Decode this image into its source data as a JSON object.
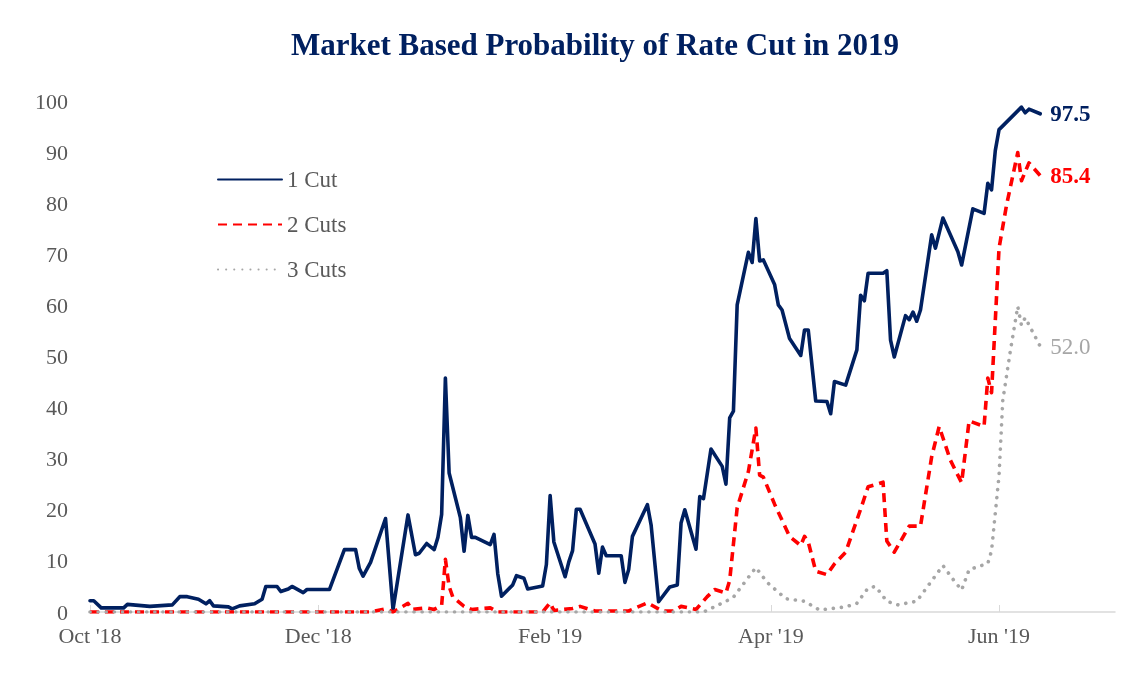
{
  "chart_data": {
    "type": "line",
    "title": "Market Based Probability of Rate Cut in 2019",
    "xlim": [
      "2018-10-01",
      "2019-07-02"
    ],
    "xticks": [
      {
        "value": "2018-10-01",
        "label": "Oct '18"
      },
      {
        "value": "2018-12-01",
        "label": "Dec '18"
      },
      {
        "value": "2019-02-01",
        "label": "Feb '19"
      },
      {
        "value": "2019-04-01",
        "label": "Apr '19"
      },
      {
        "value": "2019-06-01",
        "label": "Jun '19"
      }
    ],
    "ylim": [
      0,
      100
    ],
    "yticks": [
      0,
      10,
      20,
      30,
      40,
      50,
      60,
      70,
      80,
      90,
      100
    ],
    "grid": false,
    "legend": "top left",
    "marker": "none",
    "series": [
      {
        "name": "1 Cut",
        "color": "#002060",
        "line_style": "solid",
        "x": [
          "2018-10-01",
          "2018-10-02",
          "2018-10-04",
          "2018-10-10",
          "2018-10-11",
          "2018-10-17",
          "2018-10-19",
          "2018-10-23",
          "2018-10-25",
          "2018-10-27",
          "2018-10-30",
          "2018-11-01",
          "2018-11-02",
          "2018-11-03",
          "2018-11-07",
          "2018-11-08",
          "2018-11-10",
          "2018-11-14",
          "2018-11-16",
          "2018-11-17",
          "2018-11-20",
          "2018-11-21",
          "2018-11-23",
          "2018-11-24",
          "2018-11-27",
          "2018-11-28",
          "2018-12-04",
          "2018-12-06",
          "2018-12-08",
          "2018-12-11",
          "2018-12-12",
          "2018-12-13",
          "2018-12-15",
          "2018-12-19",
          "2018-12-21",
          "2018-12-25",
          "2018-12-27",
          "2018-12-28",
          "2018-12-30",
          "2019-01-01",
          "2019-01-02",
          "2019-01-03",
          "2019-01-04",
          "2019-01-05",
          "2019-01-08",
          "2019-01-09",
          "2019-01-10",
          "2019-01-11",
          "2019-01-12",
          "2019-01-16",
          "2019-01-17",
          "2019-01-18",
          "2019-01-19",
          "2019-01-22",
          "2019-01-23",
          "2019-01-25",
          "2019-01-26",
          "2019-01-30",
          "2019-01-31",
          "2019-02-01",
          "2019-02-02",
          "2019-02-05",
          "2019-02-06",
          "2019-02-07",
          "2019-02-08",
          "2019-02-09",
          "2019-02-13",
          "2019-02-14",
          "2019-02-15",
          "2019-02-16",
          "2019-02-20",
          "2019-02-21",
          "2019-02-22",
          "2019-02-23",
          "2019-02-27",
          "2019-02-28",
          "2019-03-02",
          "2019-03-05",
          "2019-03-07",
          "2019-03-08",
          "2019-03-09",
          "2019-03-12",
          "2019-03-13",
          "2019-03-14",
          "2019-03-16",
          "2019-03-19",
          "2019-03-20",
          "2019-03-21",
          "2019-03-22",
          "2019-03-23",
          "2019-03-26",
          "2019-03-27",
          "2019-03-28",
          "2019-03-29",
          "2019-03-30",
          "2019-04-02",
          "2019-04-03",
          "2019-04-04",
          "2019-04-06",
          "2019-04-09",
          "2019-04-10",
          "2019-04-11",
          "2019-04-13",
          "2019-04-16",
          "2019-04-17",
          "2019-04-18",
          "2019-04-21",
          "2019-04-24",
          "2019-04-25",
          "2019-04-26",
          "2019-04-27",
          "2019-05-01",
          "2019-05-02",
          "2019-05-03",
          "2019-05-04",
          "2019-05-07",
          "2019-05-08",
          "2019-05-09",
          "2019-05-10",
          "2019-05-11",
          "2019-05-14",
          "2019-05-15",
          "2019-05-17",
          "2019-05-21",
          "2019-05-22",
          "2019-05-25",
          "2019-05-28",
          "2019-05-29",
          "2019-05-30",
          "2019-05-31",
          "2019-06-01",
          "2019-06-07",
          "2019-06-08",
          "2019-06-09",
          "2019-06-12"
        ],
        "values": [
          2.2,
          2.2,
          0.8,
          0.8,
          1.5,
          1.1,
          1.2,
          1.4,
          3.0,
          3.0,
          2.5,
          1.6,
          2.2,
          1.2,
          1.0,
          0.6,
          1.2,
          1.6,
          2.5,
          5.0,
          5.0,
          4.0,
          4.5,
          5.0,
          3.8,
          4.4,
          4.4,
          8.3,
          12.2,
          12.2,
          8.5,
          7.0,
          9.7,
          18.3,
          0.5,
          19.0,
          11.2,
          11.5,
          13.4,
          12.2,
          14.6,
          19.1,
          45.8,
          27.2,
          18.5,
          11.9,
          18.9,
          14.6,
          14.6,
          13.2,
          15.2,
          7.5,
          3.1,
          5.3,
          7.1,
          6.6,
          4.5,
          5.1,
          9.3,
          22.8,
          13.7,
          6.9,
          9.8,
          12.0,
          20.1,
          20.1,
          13.3,
          7.6,
          12.7,
          11.0,
          11.0,
          5.8,
          8.3,
          14.8,
          21.0,
          17.0,
          2.0,
          4.9,
          5.3,
          17.4,
          20.0,
          12.3,
          22.6,
          22.2,
          31.9,
          28.5,
          25.0,
          38.0,
          39.3,
          60.1,
          70.4,
          68.4,
          77.0,
          68.7,
          68.9,
          64.1,
          60.1,
          59.1,
          53.5,
          50.2,
          55.2,
          55.2,
          41.3,
          41.2,
          38.8,
          45.1,
          44.4,
          51.3,
          62.0,
          60.9,
          66.3,
          66.3,
          66.8,
          53.2,
          49.9,
          58.0,
          57.2,
          58.7,
          56.9,
          59.1,
          73.8,
          71.2,
          77.1,
          70.5,
          67.9,
          78.9,
          78.0,
          83.9,
          82.6,
          90.3,
          94.4,
          98.8,
          97.7,
          98.4,
          97.5
        ]
      },
      {
        "name": "2 Cuts",
        "color": "#ff0000",
        "line_style": "dashed",
        "x": [
          "2018-10-01",
          "2018-12-15",
          "2018-12-19",
          "2018-12-21",
          "2018-12-25",
          "2018-12-26",
          "2018-12-30",
          "2019-01-01",
          "2019-01-03",
          "2019-01-04",
          "2019-01-05",
          "2019-01-06",
          "2019-01-09",
          "2019-01-11",
          "2019-01-16",
          "2019-01-18",
          "2019-01-30",
          "2019-02-01",
          "2019-02-02",
          "2019-02-07",
          "2019-02-09",
          "2019-02-13",
          "2019-02-22",
          "2019-02-27",
          "2019-03-03",
          "2019-03-06",
          "2019-03-08",
          "2019-03-12",
          "2019-03-15",
          "2019-03-17",
          "2019-03-20",
          "2019-03-21",
          "2019-03-23",
          "2019-03-26",
          "2019-03-28",
          "2019-03-29",
          "2019-03-30",
          "2019-04-02",
          "2019-04-06",
          "2019-04-09",
          "2019-04-10",
          "2019-04-11",
          "2019-04-13",
          "2019-04-16",
          "2019-04-18",
          "2019-04-21",
          "2019-04-25",
          "2019-04-27",
          "2019-05-01",
          "2019-05-02",
          "2019-05-04",
          "2019-05-08",
          "2019-05-11",
          "2019-05-14",
          "2019-05-16",
          "2019-05-19",
          "2019-05-22",
          "2019-05-24",
          "2019-05-28",
          "2019-05-29",
          "2019-05-30",
          "2019-06-01",
          "2019-06-03",
          "2019-06-06",
          "2019-06-07",
          "2019-06-09",
          "2019-06-12"
        ],
        "values": [
          0,
          0,
          0.6,
          0,
          1.7,
          0.5,
          0.8,
          0.5,
          1.3,
          10.3,
          5.0,
          2.9,
          1.1,
          0.5,
          0.8,
          0,
          0,
          1.8,
          0.3,
          0.7,
          1.1,
          0.2,
          0.2,
          1.8,
          0.2,
          0.2,
          1.1,
          0.5,
          3.0,
          4.4,
          3.7,
          6.2,
          20.4,
          27.5,
          36.0,
          26.8,
          26.4,
          21.1,
          14.8,
          13.0,
          14.8,
          13.7,
          8.0,
          7.3,
          9.4,
          11.7,
          20.1,
          24.5,
          25.4,
          13.9,
          11.7,
          16.8,
          16.8,
          30.4,
          36.3,
          29.7,
          25.3,
          37.4,
          36.3,
          45.8,
          42.9,
          71.2,
          79.6,
          89.9,
          84.4,
          87.9,
          85.4
        ]
      },
      {
        "name": "3 Cuts",
        "color": "#a6a6a6",
        "line_style": "dotted",
        "x": [
          "2018-10-01",
          "2019-03-14",
          "2019-03-20",
          "2019-03-22",
          "2019-03-28",
          "2019-03-31",
          "2019-04-05",
          "2019-04-10",
          "2019-04-14",
          "2019-04-21",
          "2019-04-24",
          "2019-04-27",
          "2019-04-29",
          "2019-05-02",
          "2019-05-05",
          "2019-05-10",
          "2019-05-14",
          "2019-05-17",
          "2019-05-20",
          "2019-05-22",
          "2019-05-24",
          "2019-05-29",
          "2019-05-30",
          "2019-06-01",
          "2019-06-02",
          "2019-06-04",
          "2019-06-06",
          "2019-06-07",
          "2019-06-08",
          "2019-06-12"
        ],
        "values": [
          0,
          0,
          2.1,
          2.9,
          8.7,
          5.8,
          2.6,
          2.1,
          0.4,
          1.0,
          1.7,
          4.7,
          5.0,
          2.1,
          1.4,
          2.1,
          6.1,
          9.1,
          6.1,
          4.3,
          8.3,
          9.5,
          12.0,
          26.7,
          41.4,
          51.0,
          59.8,
          56.1,
          57.6,
          52.0
        ]
      }
    ],
    "annotations": [
      {
        "text": "97.5",
        "x": "2019-06-12",
        "y": 97.5
      },
      {
        "text": "85.4",
        "x": "2019-06-12",
        "y": 85.4
      },
      {
        "text": "52.0",
        "x": "2019-06-12",
        "y": 52.0
      }
    ]
  }
}
